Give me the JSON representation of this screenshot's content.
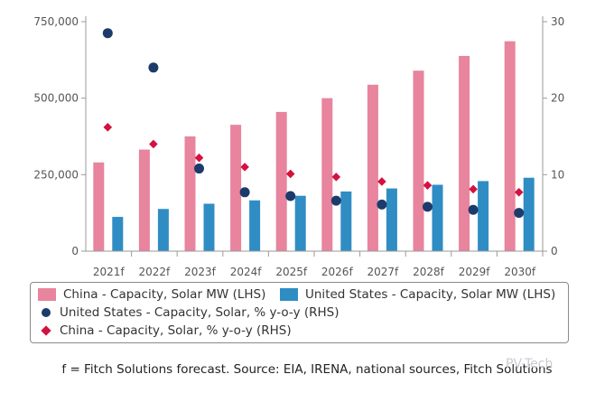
{
  "chart_data": {
    "type": "bar",
    "categories": [
      "2021f",
      "2022f",
      "2023f",
      "2024f",
      "2025f",
      "2026f",
      "2027f",
      "2028f",
      "2029f",
      "2030f"
    ],
    "series": [
      {
        "name": "China - Capacity, Solar MW (LHS)",
        "kind": "bar",
        "axis": "left",
        "color": "#e8849d",
        "values": [
          290000,
          332000,
          375000,
          413000,
          455000,
          500000,
          544000,
          590000,
          638000,
          686000
        ]
      },
      {
        "name": "United States - Capacity, Solar MW (LHS)",
        "kind": "bar",
        "axis": "left",
        "color": "#2f8dc4",
        "values": [
          112000,
          138000,
          155000,
          166000,
          181000,
          195000,
          205000,
          217000,
          229000,
          240000
        ]
      },
      {
        "name": "United States - Capacity, Solar, % y-o-y (RHS)",
        "kind": "scatter",
        "marker": "circle",
        "axis": "right",
        "color": "#1c3b6b",
        "values": [
          28.5,
          24.0,
          10.8,
          7.7,
          7.2,
          6.6,
          6.1,
          5.8,
          5.4,
          5.0
        ]
      },
      {
        "name": "China - Capacity, Solar, % y-o-y (RHS)",
        "kind": "scatter",
        "marker": "diamond",
        "axis": "right",
        "color": "#d4113f",
        "values": [
          16.2,
          14.0,
          12.2,
          11.0,
          10.1,
          9.7,
          9.1,
          8.6,
          8.1,
          7.7
        ]
      }
    ],
    "y_left": {
      "ylim": [
        0,
        750000
      ],
      "ticks": [
        0,
        250000,
        500000,
        750000
      ],
      "tick_labels": [
        "0",
        "250,000",
        "500,000",
        "750,000"
      ]
    },
    "y_right": {
      "ylim": [
        0,
        30
      ],
      "ticks": [
        0,
        10,
        20,
        30
      ],
      "tick_labels": [
        "0",
        "10",
        "20",
        "30"
      ]
    },
    "grid": false,
    "legend": "bottom"
  },
  "footnote": "f = Fitch Solutions forecast. Source: EIA, IRENA, national sources, Fitch Solutions",
  "watermark": "PV-Tech"
}
